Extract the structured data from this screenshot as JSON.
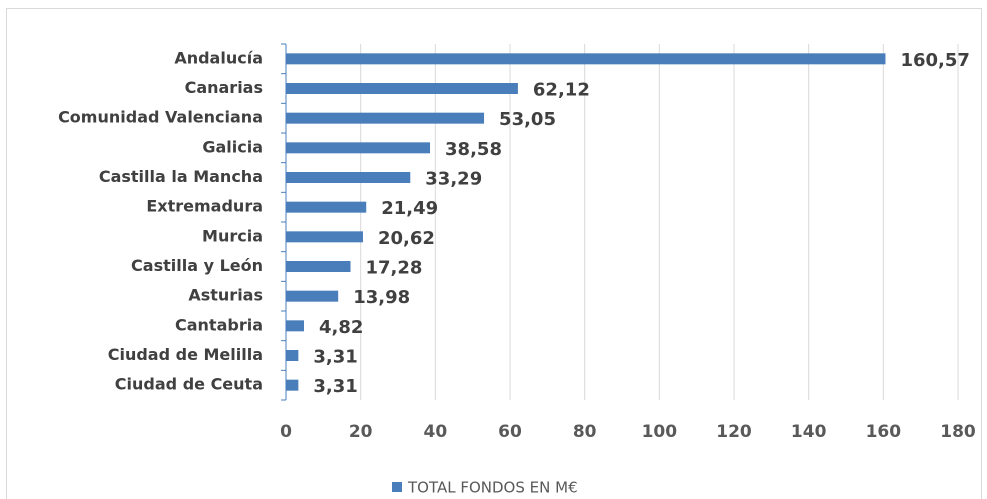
{
  "chart_data": {
    "type": "bar",
    "orientation": "horizontal",
    "categories": [
      "Andalucía",
      "Canarias",
      "Comunidad Valenciana",
      "Galicia",
      "Castilla la Mancha",
      "Extremadura",
      "Murcia",
      "Castilla y León",
      "Asturias",
      "Cantabria",
      "Ciudad de Melilla",
      "Ciudad de Ceuta"
    ],
    "series": [
      {
        "name": "TOTAL FONDOS EN M€",
        "color": "#4a7ebb",
        "values": [
          160.57,
          62.12,
          53.05,
          38.58,
          33.29,
          21.49,
          20.62,
          17.28,
          13.98,
          4.82,
          3.31,
          3.31
        ],
        "value_labels": [
          "160,57",
          "62,12",
          "53,05",
          "38,58",
          "33,29",
          "21,49",
          "20,62",
          "17,28",
          "13,98",
          "4,82",
          "3,31",
          "3,31"
        ]
      }
    ],
    "xlim": [
      0,
      180
    ],
    "xticks": [
      0,
      20,
      40,
      60,
      80,
      100,
      120,
      140,
      160,
      180
    ],
    "grid": true,
    "legend": "bottom"
  }
}
